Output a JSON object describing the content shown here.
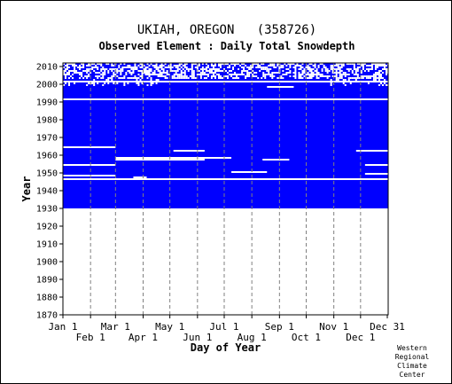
{
  "title": "UKIAH, OREGON   (358726)",
  "subtitle": "Observed Element : Daily Total Snowdepth",
  "credit": "Western\nRegional\nClimate\nCenter",
  "colors": {
    "snow": "#0000ff",
    "missing": "#ffffff",
    "grid": "#808080",
    "frame": "#000000"
  },
  "chart_data": {
    "type": "heatmap",
    "title": "UKIAH, OREGON   (358726)",
    "subtitle": "Observed Element : Daily Total Snowdepth",
    "xlabel": "Day of Year",
    "ylabel": "Year",
    "x_tick_labels_top_row": [
      "Jan 1",
      "Mar 1",
      "May 1",
      "Jul 1",
      "Sep 1",
      "Nov 1",
      "Dec 31"
    ],
    "x_tick_labels_bottom_row": [
      "Feb 1",
      "Apr 1",
      "Jun 1",
      "Aug 1",
      "Oct 1",
      "Dec 1"
    ],
    "x_ticks_day_of_year": {
      "Jan 1": 1,
      "Feb 1": 32,
      "Mar 1": 60,
      "Apr 1": 91,
      "May 1": 121,
      "Jun 1": 152,
      "Jul 1": 182,
      "Aug 1": 213,
      "Sep 1": 244,
      "Oct 1": 274,
      "Nov 1": 305,
      "Dec 1": 335,
      "Dec 31": 365
    },
    "y_ticks": [
      1870,
      1880,
      1890,
      1900,
      1910,
      1920,
      1930,
      1940,
      1950,
      1960,
      1970,
      1980,
      1990,
      2000,
      2010
    ],
    "xlim": [
      1,
      366
    ],
    "ylim": [
      1870,
      2012
    ],
    "record_years": [
      1930,
      2011
    ],
    "legend": "none",
    "grid": "vertical dashed at month starts",
    "missing_rows": [
      {
        "year": 1946,
        "start": 1,
        "end": 366
      },
      {
        "year": 1947,
        "start": 80,
        "end": 95
      },
      {
        "year": 1948,
        "start": 1,
        "end": 60
      },
      {
        "year": 1949,
        "start": 340,
        "end": 366
      },
      {
        "year": 1950,
        "start": 190,
        "end": 230
      },
      {
        "year": 1954,
        "start": 1,
        "end": 60
      },
      {
        "year": 1954,
        "start": 340,
        "end": 366
      },
      {
        "year": 1957,
        "start": 60,
        "end": 160
      },
      {
        "year": 1957,
        "start": 225,
        "end": 255
      },
      {
        "year": 1958,
        "start": 60,
        "end": 190
      },
      {
        "year": 1962,
        "start": 125,
        "end": 160
      },
      {
        "year": 1962,
        "start": 330,
        "end": 366
      },
      {
        "year": 1964,
        "start": 1,
        "end": 60
      },
      {
        "year": 1991,
        "start": 1,
        "end": 366
      },
      {
        "year": 1998,
        "start": 230,
        "end": 260
      },
      {
        "year": 2001,
        "start": 1,
        "end": 366
      }
    ],
    "sparse_years_description": "1999-2011 partially observed"
  }
}
